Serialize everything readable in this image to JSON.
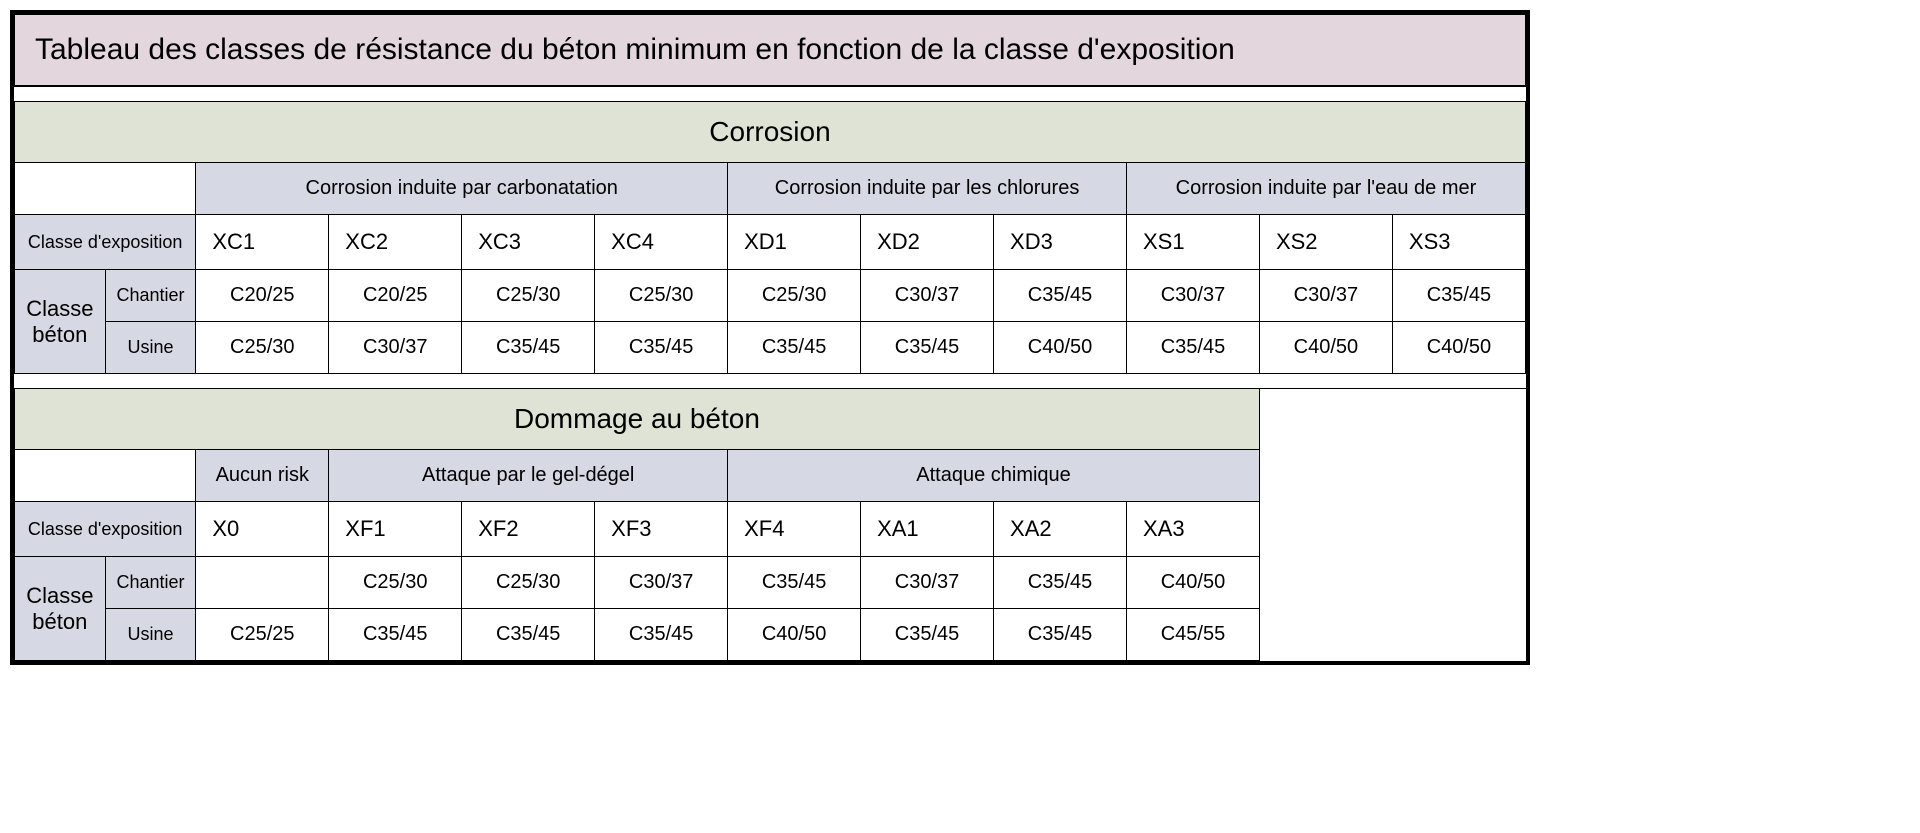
{
  "title": "Tableau des classes de résistance du béton minimum en fonction de la classe d'exposition",
  "labels": {
    "exposure": "Classe d'exposition",
    "concrete_class": "Classe béton",
    "chantier": "Chantier",
    "usine": "Usine"
  },
  "colors": {
    "title_bg": "#e3d6dc",
    "section_bg": "#dfe3d6",
    "group_bg": "#d6d8e3",
    "cell_bg": "#ffffff",
    "border": "#000000"
  },
  "section1": {
    "header": "Corrosion",
    "groups": [
      {
        "label": "Corrosion induite par carbonatation",
        "span": 4
      },
      {
        "label": "Corrosion induite par les chlorures",
        "span": 3
      },
      {
        "label": "Corrosion induite par l'eau de mer",
        "span": 3
      }
    ],
    "codes": [
      "XC1",
      "XC2",
      "XC3",
      "XC4",
      "XD1",
      "XD2",
      "XD3",
      "XS1",
      "XS2",
      "XS3"
    ],
    "chantier": [
      "C20/25",
      "C20/25",
      "C25/30",
      "C25/30",
      "C25/30",
      "C30/37",
      "C35/45",
      "C30/37",
      "C30/37",
      "C35/45"
    ],
    "usine": [
      "C25/30",
      "C30/37",
      "C35/45",
      "C35/45",
      "C35/45",
      "C35/45",
      "C40/50",
      "C35/45",
      "C40/50",
      "C40/50"
    ]
  },
  "section2": {
    "header": "Dommage au béton",
    "groups": [
      {
        "label": "Aucun risk",
        "span": 1
      },
      {
        "label": "Attaque par le gel-dégel",
        "span": 3
      },
      {
        "label": "Attaque chimique",
        "span": 4
      }
    ],
    "codes": [
      "X0",
      "XF1",
      "XF2",
      "XF3",
      "XF4",
      "XA1",
      "XA2",
      "XA3"
    ],
    "chantier": [
      "",
      "C25/30",
      "C25/30",
      "C30/37",
      "C35/45",
      "C30/37",
      "C35/45",
      "C40/50"
    ],
    "usine": [
      "C25/25",
      "C35/45",
      "C35/45",
      "C35/45",
      "C40/50",
      "C35/45",
      "C35/45",
      "C45/55"
    ]
  },
  "layout": {
    "total_cols": 12,
    "lead_cols": 2,
    "section2_data_cols": 8,
    "section2_blank_trailing": 2
  }
}
